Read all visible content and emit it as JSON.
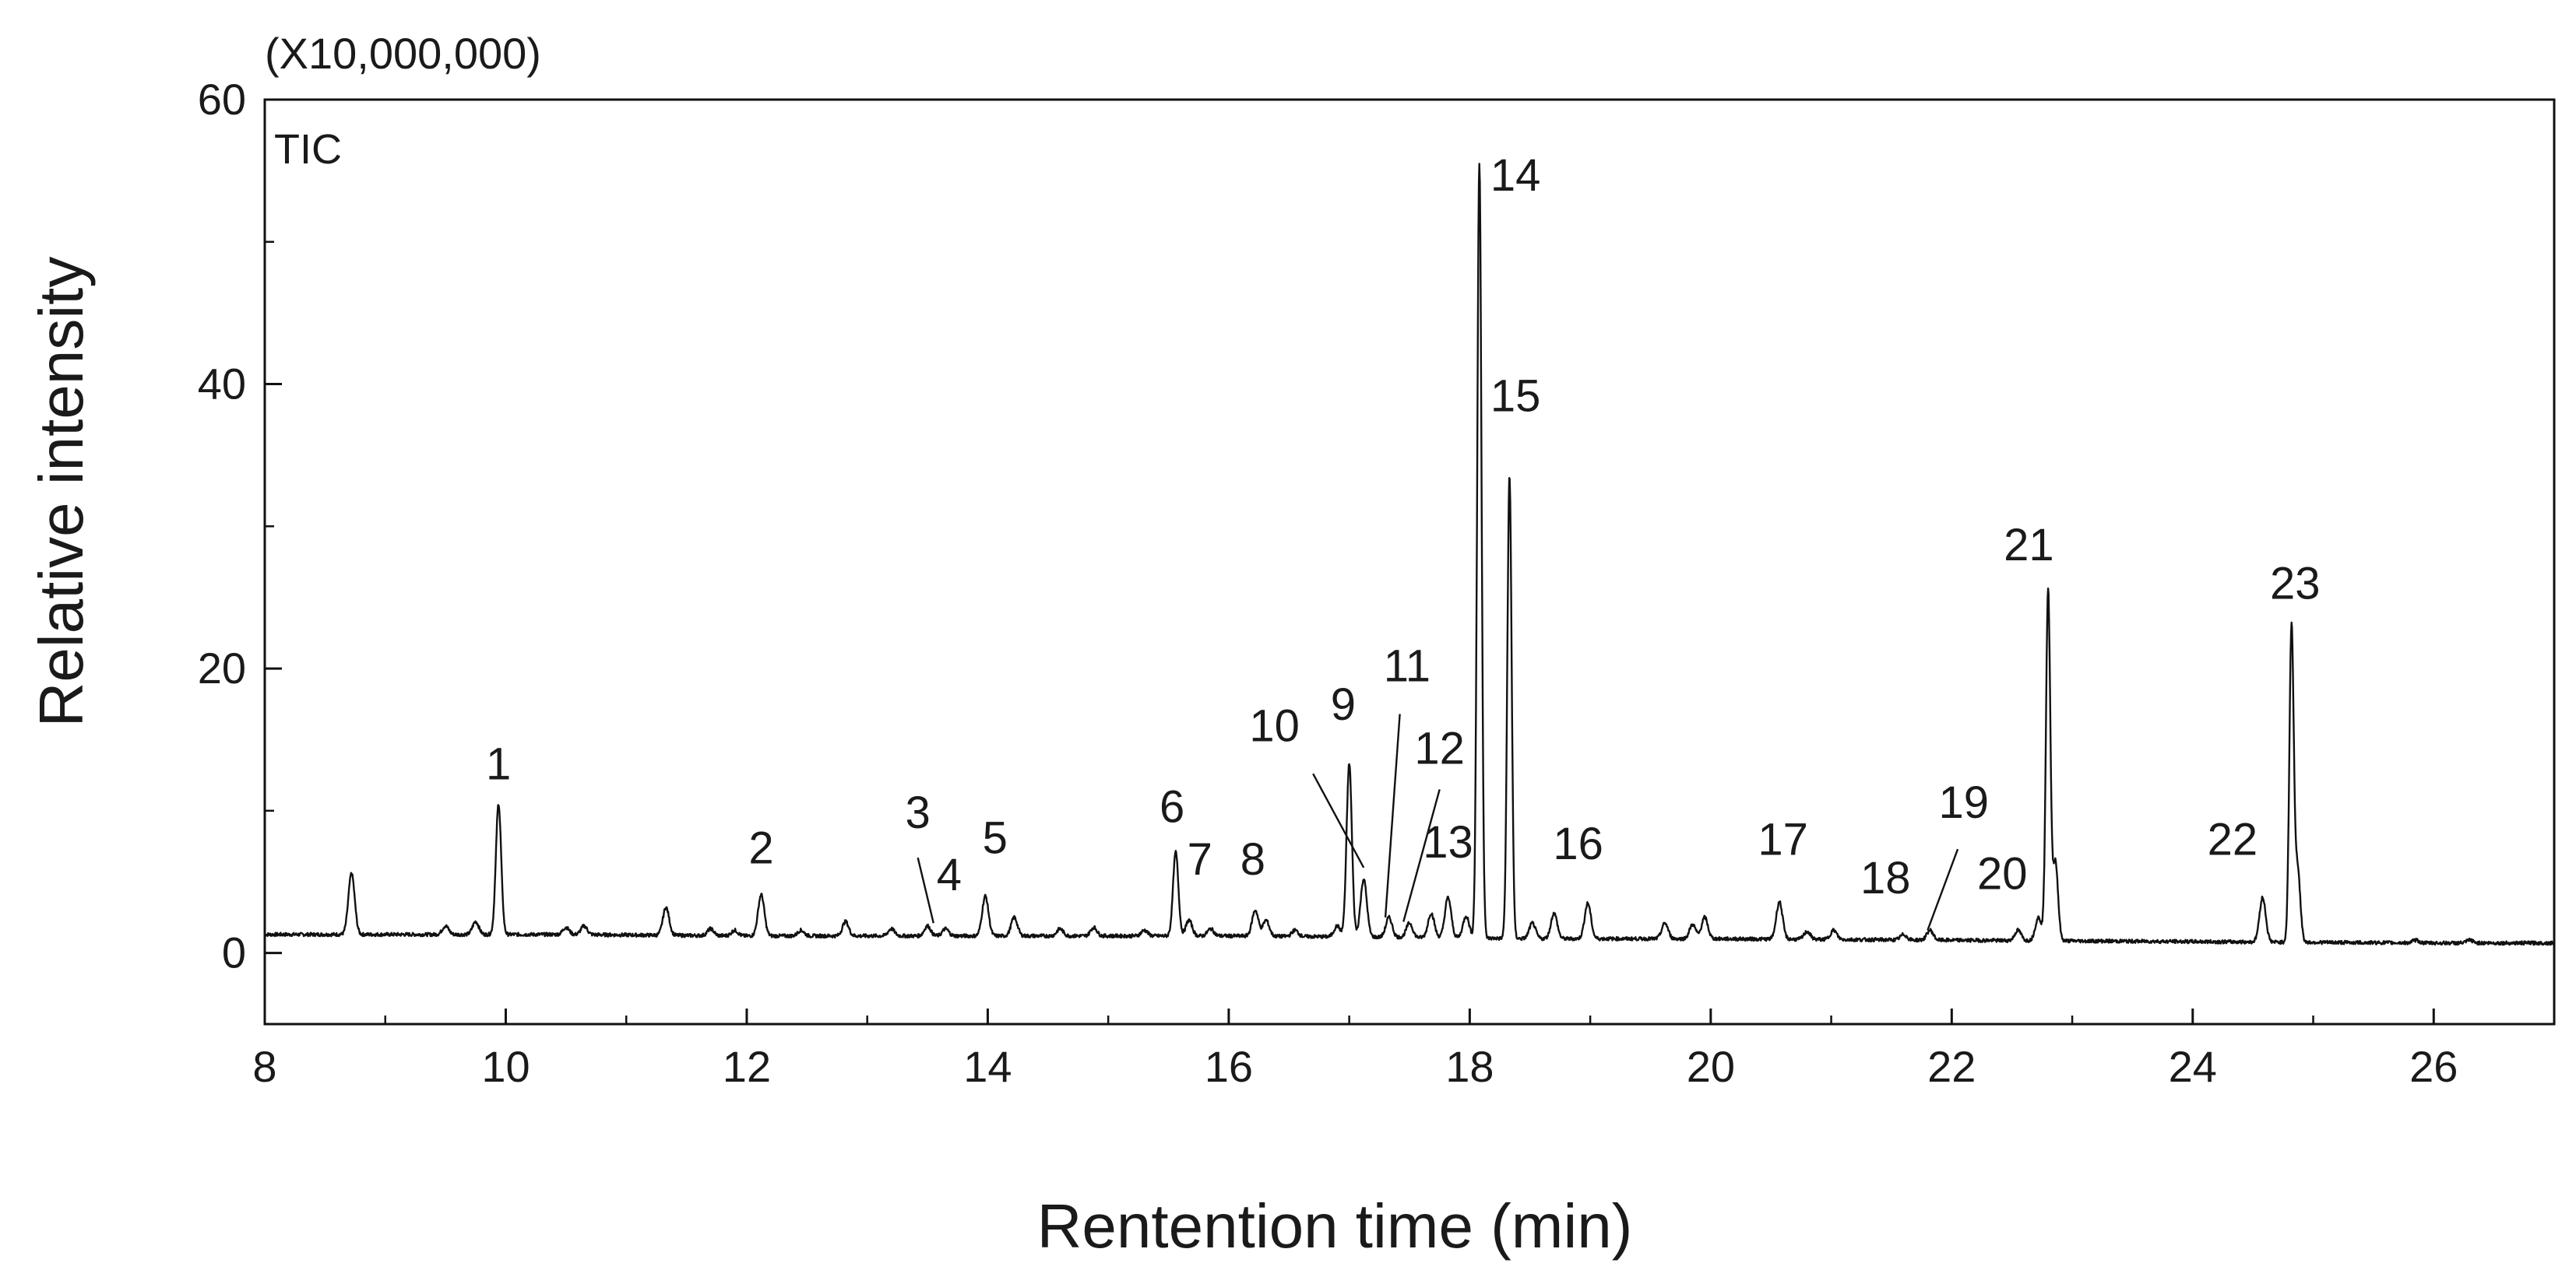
{
  "chart_data": {
    "type": "line",
    "title": "",
    "multiplier_label": "(X10,000,000)",
    "series_label": "TIC",
    "xlabel": "Rentention time (min)",
    "ylabel": "Relative  intensity",
    "xlim": [
      8,
      27
    ],
    "ylim": [
      -5,
      60
    ],
    "x_ticks": [
      8,
      10,
      12,
      14,
      16,
      18,
      20,
      22,
      24,
      26
    ],
    "y_ticks": [
      0,
      20,
      40,
      60
    ],
    "baseline": [
      [
        8.0,
        1.3
      ],
      [
        9.0,
        1.3
      ],
      [
        10.5,
        1.3
      ],
      [
        12.0,
        1.2
      ],
      [
        14.0,
        1.2
      ],
      [
        16.0,
        1.2
      ],
      [
        17.5,
        1.1
      ],
      [
        18.5,
        1.0
      ],
      [
        20.0,
        1.0
      ],
      [
        22.0,
        0.9
      ],
      [
        24.0,
        0.8
      ],
      [
        26.0,
        0.7
      ],
      [
        27.0,
        0.7
      ]
    ],
    "peaks": [
      {
        "x": 8.72,
        "y": 5.6
      },
      {
        "x": 9.5,
        "y": 1.9
      },
      {
        "x": 9.75,
        "y": 2.2
      },
      {
        "x": 9.94,
        "y": 10.5
      },
      {
        "x": 10.5,
        "y": 1.8
      },
      {
        "x": 10.65,
        "y": 1.9
      },
      {
        "x": 11.33,
        "y": 3.2
      },
      {
        "x": 11.7,
        "y": 1.7
      },
      {
        "x": 11.9,
        "y": 1.6
      },
      {
        "x": 12.12,
        "y": 4.1
      },
      {
        "x": 12.45,
        "y": 1.6
      },
      {
        "x": 12.82,
        "y": 2.2
      },
      {
        "x": 13.2,
        "y": 1.7
      },
      {
        "x": 13.5,
        "y": 1.9
      },
      {
        "x": 13.65,
        "y": 1.7
      },
      {
        "x": 13.98,
        "y": 4.0
      },
      {
        "x": 14.22,
        "y": 2.5
      },
      {
        "x": 14.6,
        "y": 1.7
      },
      {
        "x": 14.88,
        "y": 1.8
      },
      {
        "x": 15.3,
        "y": 1.6
      },
      {
        "x": 15.56,
        "y": 7.1
      },
      {
        "x": 15.67,
        "y": 2.3
      },
      {
        "x": 15.85,
        "y": 1.7
      },
      {
        "x": 16.22,
        "y": 3.0
      },
      {
        "x": 16.31,
        "y": 2.3
      },
      {
        "x": 16.55,
        "y": 1.6
      },
      {
        "x": 16.9,
        "y": 1.9
      },
      {
        "x": 17.0,
        "y": 13.3
      },
      {
        "x": 17.12,
        "y": 5.2
      },
      {
        "x": 17.33,
        "y": 2.5
      },
      {
        "x": 17.5,
        "y": 2.1
      },
      {
        "x": 17.68,
        "y": 2.8
      },
      {
        "x": 17.82,
        "y": 3.9
      },
      {
        "x": 17.97,
        "y": 2.6
      },
      {
        "x": 18.08,
        "y": 55.5
      },
      {
        "x": 18.33,
        "y": 33.5
      },
      {
        "x": 18.52,
        "y": 2.1
      },
      {
        "x": 18.7,
        "y": 2.8
      },
      {
        "x": 18.98,
        "y": 3.5
      },
      {
        "x": 19.62,
        "y": 2.1
      },
      {
        "x": 19.85,
        "y": 2.0
      },
      {
        "x": 19.95,
        "y": 2.5
      },
      {
        "x": 20.57,
        "y": 3.6
      },
      {
        "x": 20.8,
        "y": 1.5
      },
      {
        "x": 21.02,
        "y": 1.6
      },
      {
        "x": 21.6,
        "y": 1.3
      },
      {
        "x": 21.82,
        "y": 1.6
      },
      {
        "x": 22.55,
        "y": 1.6
      },
      {
        "x": 22.72,
        "y": 2.5
      },
      {
        "x": 22.8,
        "y": 25.5
      },
      {
        "x": 22.86,
        "y": 6.5
      },
      {
        "x": 24.58,
        "y": 3.9
      },
      {
        "x": 24.82,
        "y": 22.8
      },
      {
        "x": 24.87,
        "y": 6.0
      },
      {
        "x": 25.85,
        "y": 0.9
      },
      {
        "x": 26.3,
        "y": 0.9
      }
    ],
    "annotations": [
      {
        "text": "1",
        "x": 9.94,
        "y": 12.2
      },
      {
        "text": "2",
        "x": 12.12,
        "y": 6.3
      },
      {
        "text": "3",
        "x": 13.42,
        "y": 8.8,
        "leader": [
          [
            13.42,
            6.7
          ],
          [
            13.55,
            2.1
          ]
        ]
      },
      {
        "text": "4",
        "x": 13.68,
        "y": 4.4
      },
      {
        "text": "5",
        "x": 14.06,
        "y": 7.0
      },
      {
        "text": "6",
        "x": 15.53,
        "y": 9.2
      },
      {
        "text": "7",
        "x": 15.76,
        "y": 5.5
      },
      {
        "text": "8",
        "x": 16.2,
        "y": 5.5
      },
      {
        "text": "9",
        "x": 16.95,
        "y": 16.4
      },
      {
        "text": "10",
        "x": 16.38,
        "y": 14.9,
        "leader": [
          [
            16.7,
            12.6
          ],
          [
            17.12,
            6.0
          ]
        ]
      },
      {
        "text": "11",
        "x": 17.48,
        "y": 19.1,
        "leader": [
          [
            17.42,
            16.8
          ],
          [
            17.3,
            2.5
          ]
        ]
      },
      {
        "text": "12",
        "x": 17.75,
        "y": 13.3,
        "leader": [
          [
            17.75,
            11.5
          ],
          [
            17.45,
            2.2
          ]
        ]
      },
      {
        "text": "13",
        "x": 17.82,
        "y": 6.7
      },
      {
        "text": "14",
        "x": 18.38,
        "y": 53.6
      },
      {
        "text": "15",
        "x": 18.38,
        "y": 38.1
      },
      {
        "text": "16",
        "x": 18.9,
        "y": 6.6
      },
      {
        "text": "17",
        "x": 20.6,
        "y": 6.9
      },
      {
        "text": "18",
        "x": 21.45,
        "y": 4.2
      },
      {
        "text": "19",
        "x": 22.1,
        "y": 9.5,
        "leader": [
          [
            22.05,
            7.3
          ],
          [
            21.8,
            1.6
          ]
        ]
      },
      {
        "text": "20",
        "x": 22.42,
        "y": 4.5
      },
      {
        "text": "21",
        "x": 22.64,
        "y": 27.6
      },
      {
        "text": "22",
        "x": 24.33,
        "y": 6.9
      },
      {
        "text": "23",
        "x": 24.85,
        "y": 24.9
      }
    ]
  }
}
